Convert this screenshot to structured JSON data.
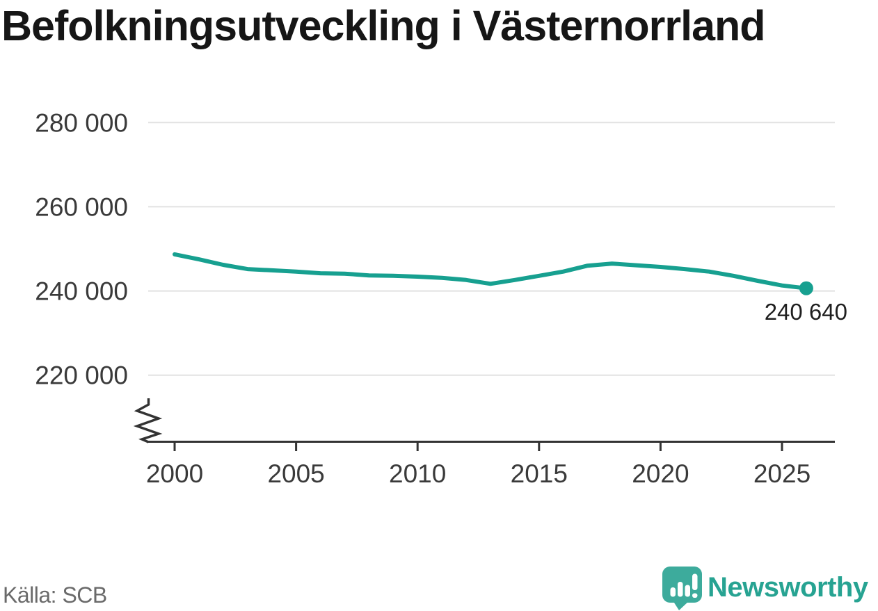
{
  "title": "Befolkningsutveckling i Västernorrland",
  "footer": {
    "source_label": "Källa: SCB",
    "brand_name": "Newsworthy"
  },
  "colors": {
    "line": "#17a090",
    "last_point": "#17a090",
    "logo_bubble": "#3dab9c",
    "logo_bars": "#ffffff",
    "wordmark": "#27a392",
    "grid": "#e2e2e2",
    "axis": "#333333",
    "tick_label": "#3a3a3a",
    "title_text": "#161616",
    "source_text": "#6a6a6a",
    "annotation_text": "#1f1f1f"
  },
  "chart_data": {
    "type": "line",
    "title": "Befolkningsutveckling i Västernorrland",
    "xlabel": "",
    "ylabel": "",
    "x": [
      2000,
      2001,
      2002,
      2003,
      2004,
      2005,
      2006,
      2007,
      2008,
      2009,
      2010,
      2011,
      2012,
      2013,
      2014,
      2015,
      2016,
      2017,
      2018,
      2019,
      2020,
      2021,
      2022,
      2023,
      2024,
      2025,
      2026
    ],
    "values": [
      248700,
      247500,
      246200,
      245200,
      244900,
      244600,
      244200,
      244100,
      243700,
      243600,
      243400,
      243100,
      242600,
      241700,
      242600,
      243600,
      244600,
      246000,
      246500,
      246100,
      245700,
      245200,
      244600,
      243600,
      242400,
      241300,
      240640
    ],
    "yticks": [
      280000,
      260000,
      240000,
      220000
    ],
    "ytick_labels": [
      "280 000",
      "260 000",
      "240 000",
      "220 000"
    ],
    "xticks": [
      2000,
      2005,
      2010,
      2015,
      2020,
      2025
    ],
    "xlim": [
      2000,
      2027
    ],
    "ylim": [
      220000,
      280000
    ],
    "grid": "horizontal",
    "legend": "none",
    "y_axis_break": true,
    "last_value": 240640,
    "last_value_label": "240 640",
    "source": "SCB"
  }
}
